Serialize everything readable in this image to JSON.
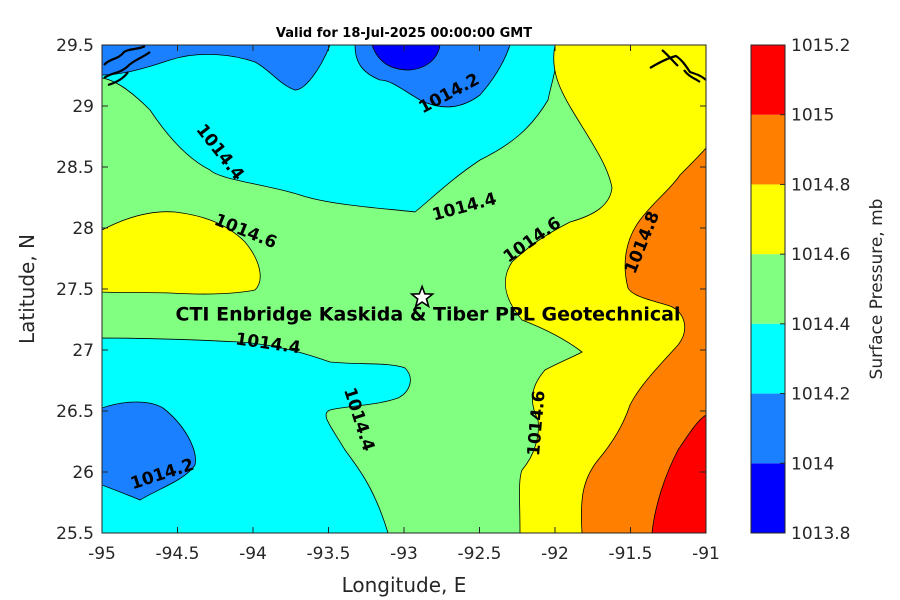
{
  "chart_data": {
    "type": "contour",
    "title": "Valid for 18-Jul-2025 00:00:00 GMT",
    "xlabel": "Longitude, E",
    "ylabel": "Latitude, N",
    "xlim": [
      -95,
      -91
    ],
    "ylim": [
      25.5,
      29.5
    ],
    "x_ticks": [
      -95,
      -94.5,
      -94,
      -93.5,
      -93,
      -92.5,
      -92,
      -91.5,
      -91
    ],
    "x_tick_labels": [
      "-95",
      "-94.5",
      "-94",
      "-93.5",
      "-93",
      "-92.5",
      "-92",
      "-91.5",
      "-91"
    ],
    "y_ticks": [
      25.5,
      26,
      26.5,
      27,
      27.5,
      28,
      28.5,
      29,
      29.5
    ],
    "y_tick_labels": [
      "25.5",
      "26",
      "26.5",
      "27",
      "27.5",
      "28",
      "28.5",
      "29",
      "29.5"
    ],
    "colorbar": {
      "label": "Surface Pressure, mb",
      "levels": [
        1013.8,
        1014,
        1014.2,
        1014.4,
        1014.6,
        1014.8,
        1015,
        1015.2
      ],
      "tick_labels": [
        "1013.8",
        "1014",
        "1014.2",
        "1014.4",
        "1014.6",
        "1014.8",
        "1015",
        "1015.2"
      ],
      "colors": [
        "#0000ff",
        "#1a80ff",
        "#00ffff",
        "#80ff80",
        "#ffff00",
        "#ff8000",
        "#ff0000",
        "#800000"
      ]
    },
    "contour_labels": [
      {
        "text": "1014.2",
        "lon": -92.7,
        "lat": 29.1,
        "angle": -28
      },
      {
        "text": "1014.4",
        "lon": -94.22,
        "lat": 28.62,
        "angle": 52
      },
      {
        "text": "1014.4",
        "lon": -92.6,
        "lat": 28.17,
        "angle": -15
      },
      {
        "text": "1014.6",
        "lon": -94.05,
        "lat": 27.97,
        "angle": 22
      },
      {
        "text": "1014.6",
        "lon": -92.15,
        "lat": 27.9,
        "angle": -35
      },
      {
        "text": "1014.8",
        "lon": -91.42,
        "lat": 27.88,
        "angle": -68
      },
      {
        "text": "1014.4",
        "lon": -93.9,
        "lat": 27.05,
        "angle": 8
      },
      {
        "text": "1014.4",
        "lon": -93.3,
        "lat": 26.43,
        "angle": 72
      },
      {
        "text": "1014.6",
        "lon": -92.12,
        "lat": 26.4,
        "angle": -85
      },
      {
        "text": "1014.2",
        "lon": -94.6,
        "lat": 25.98,
        "angle": -18
      }
    ],
    "site_marker": {
      "lon": -92.88,
      "lat": 27.43,
      "symbol": "star"
    },
    "annotation": {
      "text": "CTI Enbridge  Kaskida & Tiber PPL Geotechnical",
      "lon": -93,
      "lat": 27.3
    },
    "grid": false
  }
}
